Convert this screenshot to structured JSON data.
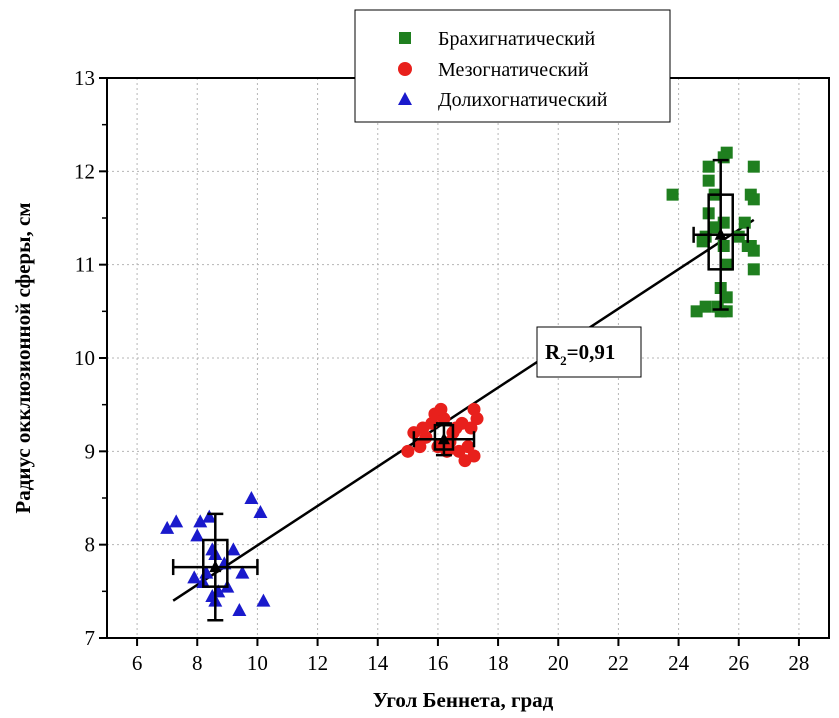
{
  "chart_data": {
    "type": "scatter",
    "xlabel": "Угол Беннета, град",
    "ylabel": "Радиус окклюзионной сферы, см",
    "xlim": [
      5,
      29
    ],
    "ylim": [
      7,
      13
    ],
    "x_ticks": [
      6,
      8,
      10,
      12,
      14,
      16,
      18,
      20,
      22,
      24,
      26,
      28
    ],
    "y_ticks": [
      7,
      8,
      9,
      10,
      11,
      12,
      13
    ],
    "grid": true,
    "legend_position": "top-center",
    "series": [
      {
        "name": "Брахигнатический",
        "marker": "square",
        "color": "#1f7f1f",
        "points": [
          [
            23.8,
            11.75
          ],
          [
            25.0,
            12.05
          ],
          [
            25.0,
            11.9
          ],
          [
            25.2,
            11.75
          ],
          [
            25.0,
            11.55
          ],
          [
            25.2,
            11.4
          ],
          [
            24.8,
            11.25
          ],
          [
            25.6,
            12.2
          ],
          [
            25.5,
            12.15
          ],
          [
            25.5,
            11.45
          ],
          [
            25.5,
            11.2
          ],
          [
            25.6,
            11.0
          ],
          [
            25.4,
            10.75
          ],
          [
            25.6,
            10.65
          ],
          [
            25.3,
            10.55
          ],
          [
            25.4,
            10.5
          ],
          [
            25.6,
            10.5
          ],
          [
            24.6,
            10.5
          ],
          [
            24.9,
            10.55
          ],
          [
            26.5,
            12.05
          ],
          [
            26.4,
            11.75
          ],
          [
            26.5,
            11.7
          ],
          [
            26.2,
            11.45
          ],
          [
            26.4,
            11.2
          ],
          [
            26.5,
            11.15
          ],
          [
            26.3,
            11.2
          ],
          [
            26.5,
            10.95
          ],
          [
            26.0,
            11.3
          ],
          [
            24.9,
            11.3
          ]
        ]
      },
      {
        "name": "Мезогнатический",
        "marker": "circle",
        "color": "#e8201c",
        "points": [
          [
            15.0,
            9.0
          ],
          [
            15.2,
            9.2
          ],
          [
            15.5,
            9.25
          ],
          [
            15.6,
            9.15
          ],
          [
            15.8,
            9.3
          ],
          [
            15.9,
            9.4
          ],
          [
            16.0,
            9.05
          ],
          [
            16.2,
            9.35
          ],
          [
            16.4,
            9.1
          ],
          [
            16.6,
            9.25
          ],
          [
            16.7,
            9.0
          ],
          [
            16.8,
            9.3
          ],
          [
            16.9,
            8.9
          ],
          [
            17.0,
            9.05
          ],
          [
            17.1,
            9.25
          ],
          [
            17.2,
            9.45
          ],
          [
            17.2,
            8.95
          ],
          [
            17.3,
            9.35
          ],
          [
            16.1,
            9.45
          ],
          [
            15.4,
            9.05
          ],
          [
            16.5,
            9.2
          ],
          [
            16.3,
            9.0
          ]
        ]
      },
      {
        "name": "Долихогнатический",
        "marker": "triangle",
        "color": "#1a1acc",
        "points": [
          [
            7.0,
            8.18
          ],
          [
            7.3,
            8.25
          ],
          [
            8.0,
            8.1
          ],
          [
            8.1,
            8.25
          ],
          [
            8.4,
            8.3
          ],
          [
            8.5,
            7.95
          ],
          [
            8.5,
            7.45
          ],
          [
            8.6,
            7.9
          ],
          [
            8.7,
            7.5
          ],
          [
            8.2,
            7.6
          ],
          [
            7.9,
            7.65
          ],
          [
            8.9,
            7.8
          ],
          [
            9.0,
            7.55
          ],
          [
            9.2,
            7.95
          ],
          [
            9.5,
            7.7
          ],
          [
            9.4,
            7.3
          ],
          [
            9.8,
            8.5
          ],
          [
            10.1,
            8.35
          ],
          [
            10.2,
            7.4
          ],
          [
            8.6,
            7.4
          ],
          [
            8.3,
            7.7
          ]
        ]
      }
    ],
    "group_summaries": [
      {
        "x_mean": 25.4,
        "x_err": 0.9,
        "y_mean": 11.32,
        "y_err": 0.8,
        "box_x": [
          25.0,
          25.8
        ],
        "box_y": [
          10.95,
          11.75
        ]
      },
      {
        "x_mean": 16.2,
        "x_err": 1.0,
        "y_mean": 9.13,
        "y_err": 0.17,
        "box_x": [
          15.9,
          16.5
        ],
        "box_y": [
          9.02,
          9.28
        ]
      },
      {
        "x_mean": 8.6,
        "x_err": 1.4,
        "y_mean": 7.76,
        "y_err": 0.57,
        "box_x": [
          8.2,
          9.0
        ],
        "box_y": [
          7.55,
          8.05
        ]
      }
    ],
    "regression_line": {
      "x": [
        7.2,
        26.5
      ],
      "y": [
        7.4,
        11.48
      ]
    },
    "annotation": {
      "text_main": "R",
      "text_sub": "2",
      "text_tail": "=0,91"
    }
  }
}
